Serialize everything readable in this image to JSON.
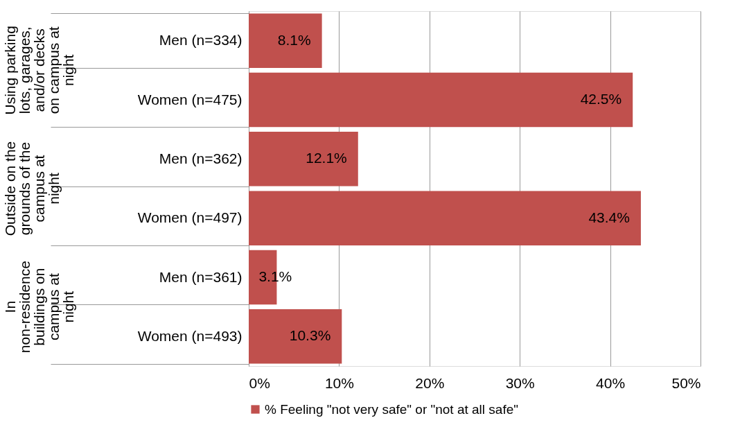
{
  "chart_data": {
    "type": "bar",
    "orientation": "horizontal",
    "categories": [
      "Men (n=334)",
      "Women (n=475)",
      "Men (n=362)",
      "Women (n=497)",
      "Men (n=361)",
      "Women (n=493)"
    ],
    "series": [
      {
        "name": "% Feeling \"not very safe\" or \"not at all  safe\"",
        "color": "#c0504d",
        "values": [
          8.1,
          42.5,
          12.1,
          43.4,
          3.1,
          10.3
        ],
        "value_labels": [
          "8.1%",
          "42.5%",
          "12.1%",
          "43.4%",
          "3.1%",
          "10.3%"
        ]
      }
    ],
    "xlim": [
      0,
      50
    ],
    "xticks": [
      {
        "value": 0,
        "label": "0%"
      },
      {
        "value": 10,
        "label": "10%"
      },
      {
        "value": 20,
        "label": "20%"
      },
      {
        "value": 30,
        "label": "30%"
      },
      {
        "value": 40,
        "label": "40%"
      },
      {
        "value": 50,
        "label": "50%"
      }
    ],
    "annotations": [
      "Using parking lots, garages, and/or decks on campus at night",
      "Outside on the grounds of the campus at night",
      "In non-residence buildings on campus at night"
    ],
    "grid": "x",
    "legend": "bottom"
  }
}
